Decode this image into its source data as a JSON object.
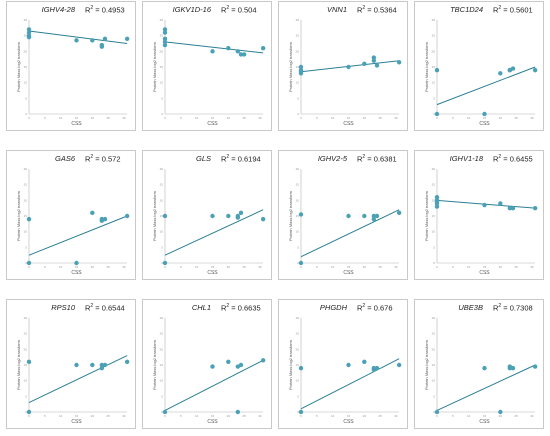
{
  "colors": {
    "marker": "#4aa1b6",
    "line": "#2b7f95",
    "axis": "#b5b5b5",
    "border": "#c9c9c9"
  },
  "panels": [
    {
      "gene": "IGHV4-28",
      "r2_label": "R",
      "r2_value": "= 0.4953",
      "xlabel": "CSS",
      "ylabel": "Protein Mass log2 transform",
      "chart_data": {
        "type": "scatter",
        "xlim": [
          0,
          30
        ],
        "ylim": [
          0,
          30
        ],
        "x": [
          0,
          0,
          0,
          0,
          15,
          20,
          23,
          23,
          24,
          31
        ],
        "y": [
          27,
          26,
          25,
          24.5,
          23.5,
          23.5,
          22,
          21.5,
          24,
          24
        ],
        "fit": [
          [
            0,
            26.5
          ],
          [
            31,
            22.5
          ]
        ]
      }
    },
    {
      "gene": "IGKV1D-16",
      "r2_label": "R",
      "r2_value": "= 0.504",
      "xlabel": "CSS",
      "ylabel": "Protein Mass log2 transform",
      "chart_data": {
        "type": "scatter",
        "xlim": [
          0,
          30
        ],
        "ylim": [
          0,
          30
        ],
        "x": [
          0,
          0,
          0,
          0,
          0,
          15,
          20,
          23,
          24,
          25,
          31
        ],
        "y": [
          27,
          26,
          24,
          23,
          22,
          20,
          21,
          20,
          19,
          19,
          21
        ],
        "fit": [
          [
            0,
            23
          ],
          [
            31,
            19.5
          ]
        ]
      }
    },
    {
      "gene": "VNN1",
      "r2_label": "R",
      "r2_value": "= 0.5364",
      "xlabel": "CSS",
      "ylabel": "Protein Mass log2 transform",
      "chart_data": {
        "type": "scatter",
        "xlim": [
          0,
          30
        ],
        "ylim": [
          0,
          30
        ],
        "x": [
          0,
          0,
          0,
          0,
          15,
          20,
          23,
          23,
          24,
          31
        ],
        "y": [
          15,
          14,
          13.5,
          13,
          15,
          16,
          18,
          17,
          15.5,
          16.5
        ],
        "fit": [
          [
            0,
            13.5
          ],
          [
            31,
            17
          ]
        ]
      }
    },
    {
      "gene": "TBC1D24",
      "r2_label": "R",
      "r2_value": "= 0.5601",
      "xlabel": "CSS",
      "ylabel": "Protein Mass log2 transform",
      "chart_data": {
        "type": "scatter",
        "xlim": [
          0,
          30
        ],
        "ylim": [
          0,
          30
        ],
        "x": [
          0,
          0,
          15,
          20,
          23,
          23,
          24,
          31
        ],
        "y": [
          14,
          0,
          0,
          13,
          14,
          14,
          14.5,
          14
        ],
        "fit": [
          [
            0,
            3
          ],
          [
            31,
            15
          ]
        ]
      }
    },
    {
      "gene": "GAS6",
      "r2_label": "R",
      "r2_value": "= 0.572",
      "xlabel": "CSS",
      "ylabel": "Protein Mass log2 transform",
      "chart_data": {
        "type": "scatter",
        "xlim": [
          0,
          30
        ],
        "ylim": [
          0,
          30
        ],
        "x": [
          0,
          0,
          15,
          20,
          23,
          23,
          24,
          31
        ],
        "y": [
          14,
          0,
          0,
          16,
          14,
          13.5,
          14,
          15
        ],
        "fit": [
          [
            0,
            2.5
          ],
          [
            31,
            15
          ]
        ]
      }
    },
    {
      "gene": "GLS",
      "r2_label": "R",
      "r2_value": "= 0.6194",
      "xlabel": "CSS",
      "ylabel": "Protein Mass log2 transform",
      "chart_data": {
        "type": "scatter",
        "xlim": [
          0,
          30
        ],
        "ylim": [
          0,
          30
        ],
        "x": [
          0,
          0,
          15,
          20,
          23,
          23,
          24,
          31
        ],
        "y": [
          15,
          0,
          15,
          15,
          14.5,
          15,
          16,
          14
        ],
        "fit": [
          [
            0,
            2.5
          ],
          [
            31,
            17
          ]
        ]
      }
    },
    {
      "gene": "IGHV2-5",
      "r2_label": "R",
      "r2_value": "= 0.6381",
      "xlabel": "CSS",
      "ylabel": "Protein Mass log2 transform",
      "chart_data": {
        "type": "scatter",
        "xlim": [
          0,
          30
        ],
        "ylim": [
          0,
          30
        ],
        "x": [
          0,
          0,
          15,
          20,
          23,
          23,
          24,
          31
        ],
        "y": [
          15.5,
          0,
          15,
          15,
          14,
          15,
          15,
          16
        ],
        "fit": [
          [
            0,
            2
          ],
          [
            31,
            17
          ]
        ]
      }
    },
    {
      "gene": "IGHV1-18",
      "r2_label": "R",
      "r2_value": "= 0.6455",
      "xlabel": "CSS",
      "ylabel": "Protein Mass log2 transform",
      "chart_data": {
        "type": "scatter",
        "xlim": [
          0,
          30
        ],
        "ylim": [
          0,
          30
        ],
        "x": [
          0,
          0,
          0,
          0,
          0,
          15,
          20,
          23,
          24,
          31
        ],
        "y": [
          21,
          20,
          19.5,
          19,
          18,
          18.5,
          19,
          17.5,
          17.5,
          17.5
        ],
        "fit": [
          [
            0,
            20
          ],
          [
            31,
            17.5
          ]
        ]
      }
    },
    {
      "gene": "RPS10",
      "r2_label": "R",
      "r2_value": "= 0.6544",
      "xlabel": "CSS",
      "ylabel": "Protein Mass log2 transform",
      "chart_data": {
        "type": "scatter",
        "xlim": [
          0,
          30
        ],
        "ylim": [
          0,
          30
        ],
        "x": [
          0,
          0,
          15,
          20,
          23,
          23,
          24,
          31
        ],
        "y": [
          16,
          0,
          15,
          15,
          15,
          14,
          15,
          16
        ],
        "fit": [
          [
            0,
            3
          ],
          [
            31,
            18
          ]
        ]
      }
    },
    {
      "gene": "CHL1",
      "r2_label": "R",
      "r2_value": "= 0.6635",
      "xlabel": "CSS",
      "ylabel": "Protein Mass log2 transform",
      "chart_data": {
        "type": "scatter",
        "xlim": [
          0,
          30
        ],
        "ylim": [
          0,
          30
        ],
        "x": [
          0,
          15,
          20,
          23,
          23,
          24,
          31
        ],
        "y": [
          0,
          14.5,
          16,
          14.5,
          0,
          15,
          16.5
        ],
        "fit": [
          [
            0,
            0.5
          ],
          [
            31,
            16.5
          ]
        ]
      }
    },
    {
      "gene": "PHGDH",
      "r2_label": "R",
      "r2_value": "= 0.676",
      "xlabel": "CSS",
      "ylabel": "Protein Mass log2 transform",
      "chart_data": {
        "type": "scatter",
        "xlim": [
          0,
          30
        ],
        "ylim": [
          0,
          30
        ],
        "x": [
          0,
          0,
          15,
          20,
          23,
          23,
          24,
          31
        ],
        "y": [
          14,
          0,
          15,
          16,
          14,
          13.5,
          14,
          15
        ],
        "fit": [
          [
            0,
            1
          ],
          [
            31,
            17
          ]
        ]
      }
    },
    {
      "gene": "UBE3B",
      "r2_label": "R",
      "r2_value": "= 0.7308",
      "xlabel": "CSS",
      "ylabel": "Protein Mass log2 transform",
      "chart_data": {
        "type": "scatter",
        "xlim": [
          0,
          30
        ],
        "ylim": [
          0,
          30
        ],
        "x": [
          0,
          15,
          20,
          23,
          23,
          24,
          31
        ],
        "y": [
          0,
          14,
          0,
          14,
          14.5,
          14,
          14.5
        ],
        "fit": [
          [
            0,
            0.5
          ],
          [
            31,
            15
          ]
        ]
      }
    }
  ]
}
